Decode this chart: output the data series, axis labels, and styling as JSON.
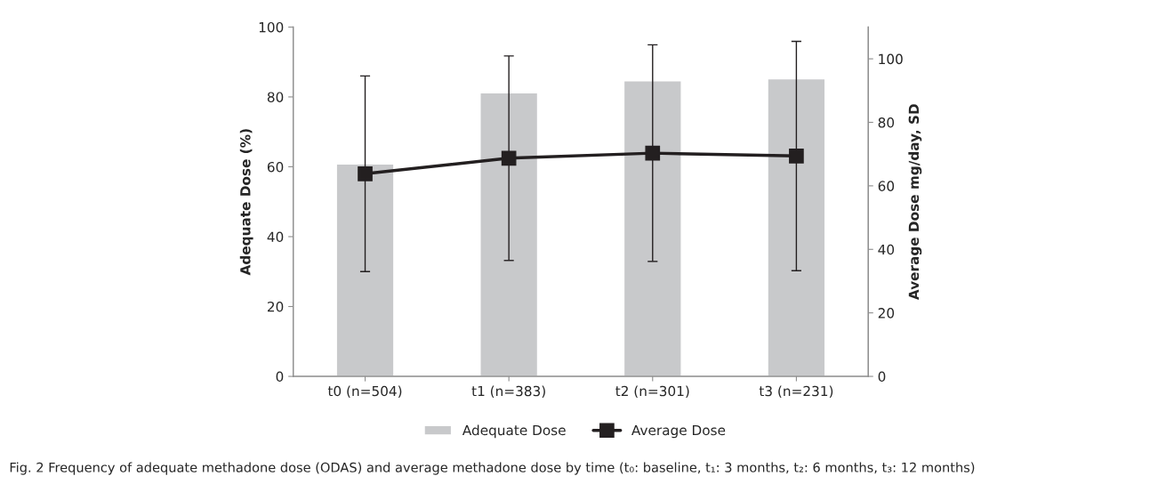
{
  "chart_data": {
    "type": "bar",
    "categories": [
      "t0 (n=504)",
      "t1 (n=383)",
      "t2 (n=301)",
      "t3 (n=231)"
    ],
    "series": [
      {
        "name": "Adequate Dose",
        "color": "#c8c9cb",
        "values": [
          60.8,
          81.2,
          84.6,
          85.2
        ]
      },
      {
        "name": "Average Dose",
        "type": "line",
        "axis": "y2",
        "color": "#231f20",
        "marker": "square",
        "line_style": "solid",
        "values": [
          63.8,
          68.7,
          70.3,
          69.4
        ],
        "errors": [
          30.8,
          32.2,
          34.1,
          36.1
        ]
      }
    ],
    "ylabel": "Adequate Dose (%)",
    "y2label": "Average Dose mg/day, SD",
    "ylim": [
      0,
      100
    ],
    "yticks": [
      0,
      20,
      40,
      60,
      80,
      100
    ],
    "y2lim": [
      0,
      110
    ],
    "y2ticks": [
      0,
      20,
      40,
      60,
      80,
      100
    ],
    "grid": false,
    "legend": "bottom",
    "annotations": [
      "Fig. 2 Frequency of adequate methadone dose (ODAS) and average methadone dose by time (t₀: baseline, t₁: 3 months, t₂: 6 months, t₃: 12 months)"
    ]
  }
}
